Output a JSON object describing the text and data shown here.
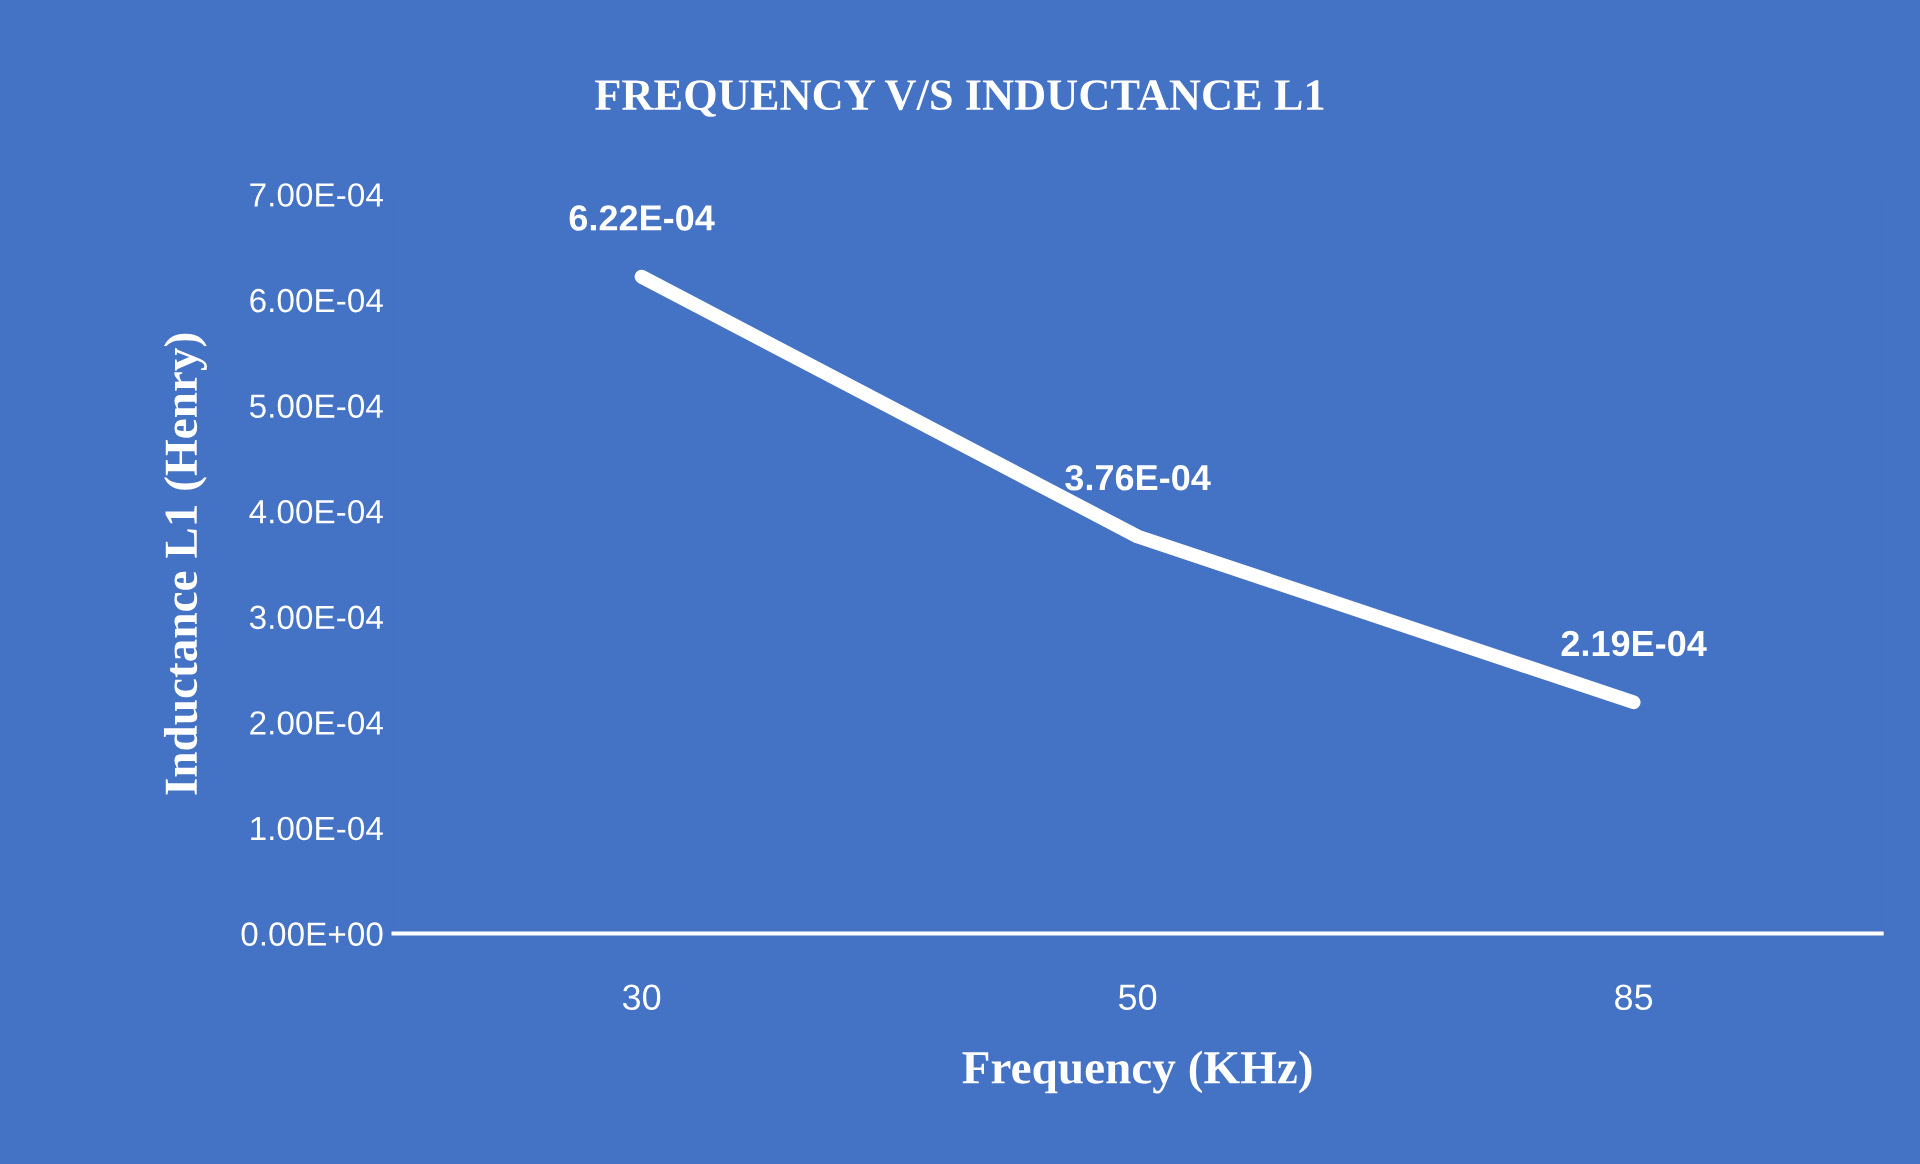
{
  "chart_data": {
    "type": "line",
    "title": "FREQUENCY V/S INDUCTANCE L1",
    "xlabel": "Frequency (KHz)",
    "ylabel": "Inductance L1 (Henry)",
    "categories": [
      "30",
      "50",
      "85"
    ],
    "series": [
      {
        "color": "#ffffff",
        "values": [
          0.000622,
          0.000376,
          0.000219
        ],
        "value_labels": [
          "6.22E-04",
          "3.76E-04",
          "2.19E-04"
        ]
      }
    ],
    "ylim": [
      0,
      0.0007
    ],
    "yticks": [
      {
        "value": 0,
        "label": "0.00E+00"
      },
      {
        "value": 0.0001,
        "label": "1.00E-04"
      },
      {
        "value": 0.0002,
        "label": "2.00E-04"
      },
      {
        "value": 0.0003,
        "label": "3.00E-04"
      },
      {
        "value": 0.0004,
        "label": "4.00E-04"
      },
      {
        "value": 0.0005,
        "label": "5.00E-04"
      },
      {
        "value": 0.0006,
        "label": "6.00E-04"
      },
      {
        "value": 0.0007,
        "label": "7.00E-04"
      }
    ],
    "grid": false,
    "legend": false,
    "marker": "none",
    "line_style": "solid"
  }
}
